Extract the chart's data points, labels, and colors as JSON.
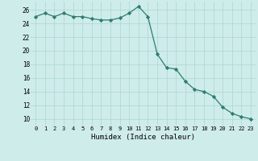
{
  "x": [
    0,
    1,
    2,
    3,
    4,
    5,
    6,
    7,
    8,
    9,
    10,
    11,
    12,
    13,
    14,
    15,
    16,
    17,
    18,
    19,
    20,
    21,
    22,
    23
  ],
  "y": [
    25.0,
    25.5,
    25.0,
    25.5,
    25.0,
    25.0,
    24.7,
    24.5,
    24.5,
    24.8,
    25.5,
    26.5,
    25.0,
    19.5,
    17.5,
    17.3,
    15.5,
    14.3,
    14.0,
    13.3,
    11.7,
    10.8,
    10.3,
    10.0
  ],
  "line_color": "#2e7d6e",
  "marker": "D",
  "marker_size": 2.2,
  "background_color": "#ceecea",
  "grid_color": "#b2d9d5",
  "xlabel": "Humidex (Indice chaleur)",
  "xlim": [
    -0.5,
    23.5
  ],
  "ylim": [
    9,
    27.2
  ],
  "yticks": [
    10,
    12,
    14,
    16,
    18,
    20,
    22,
    24,
    26
  ],
  "xticks": [
    0,
    1,
    2,
    3,
    4,
    5,
    6,
    7,
    8,
    9,
    10,
    11,
    12,
    13,
    14,
    15,
    16,
    17,
    18,
    19,
    20,
    21,
    22,
    23
  ]
}
